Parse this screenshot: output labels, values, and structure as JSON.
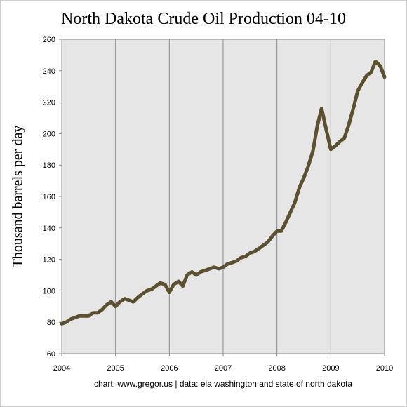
{
  "chart_data": {
    "type": "line",
    "title": "North Dakota Crude Oil Production 04-10",
    "xlabel": "",
    "ylabel": "Thousand barrels per day",
    "xlim": [
      2004,
      2010
    ],
    "ylim": [
      60,
      260
    ],
    "x_ticks": [
      "2004",
      "2005",
      "2006",
      "2007",
      "2008",
      "2009",
      "2010"
    ],
    "y_ticks": [
      "60",
      "80",
      "100",
      "120",
      "140",
      "160",
      "180",
      "200",
      "220",
      "240",
      "260"
    ],
    "grid": "vertical lines at each year",
    "legend": "none",
    "series": [
      {
        "color": "#5b5030",
        "x": [
          2004.0,
          2004.08,
          2004.17,
          2004.25,
          2004.33,
          2004.42,
          2004.5,
          2004.58,
          2004.67,
          2004.75,
          2004.83,
          2004.92,
          2005.0,
          2005.08,
          2005.17,
          2005.25,
          2005.33,
          2005.42,
          2005.5,
          2005.58,
          2005.67,
          2005.75,
          2005.83,
          2005.92,
          2006.0,
          2006.08,
          2006.17,
          2006.25,
          2006.33,
          2006.42,
          2006.5,
          2006.58,
          2006.67,
          2006.75,
          2006.83,
          2006.92,
          2007.0,
          2007.08,
          2007.17,
          2007.25,
          2007.33,
          2007.42,
          2007.5,
          2007.58,
          2007.67,
          2007.75,
          2007.83,
          2007.92,
          2008.0,
          2008.08,
          2008.17,
          2008.25,
          2008.33,
          2008.42,
          2008.5,
          2008.58,
          2008.67,
          2008.75,
          2008.83,
          2008.92,
          2009.0,
          2009.08,
          2009.17,
          2009.25,
          2009.33,
          2009.42,
          2009.5,
          2009.58,
          2009.67,
          2009.75,
          2009.83,
          2009.92,
          2010.0
        ],
        "values": [
          79,
          80,
          82,
          83,
          84,
          84,
          84,
          86,
          86,
          88,
          91,
          93,
          90,
          93,
          95,
          94,
          93,
          96,
          98,
          100,
          101,
          103,
          105,
          104,
          99,
          104,
          106,
          103,
          110,
          112,
          110,
          112,
          113,
          114,
          115,
          114,
          115,
          117,
          118,
          119,
          121,
          122,
          124,
          125,
          127,
          129,
          131,
          135,
          138,
          138,
          144,
          150,
          156,
          166,
          172,
          179,
          189,
          205,
          216,
          202,
          190,
          192,
          195,
          197,
          205,
          216,
          227,
          232,
          237,
          239,
          246,
          243,
          236
        ]
      }
    ]
  },
  "footer": {
    "text": "chart: www.gregor.us   |   data: eia washington and state of north dakota"
  }
}
